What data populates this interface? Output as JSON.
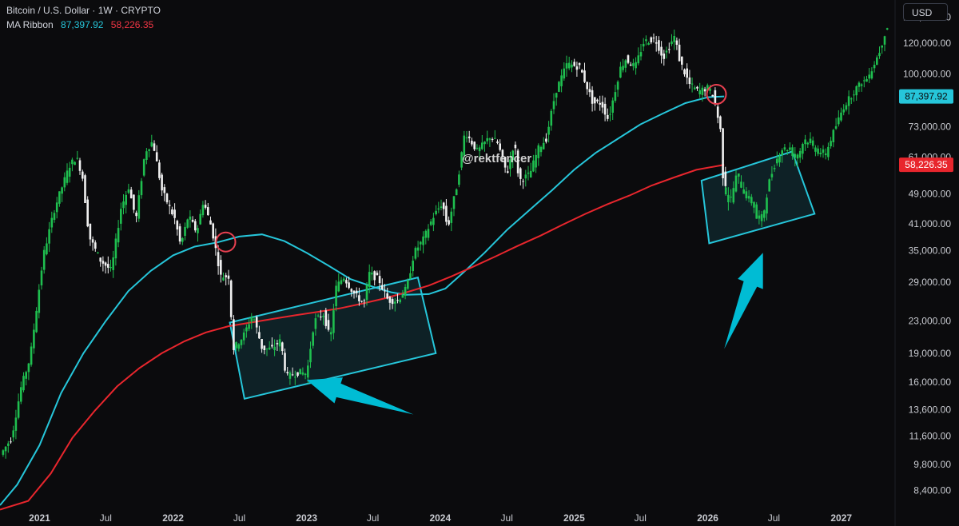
{
  "header": {
    "symbol": "Bitcoin / U.S. Dollar · 1W · CRYPTO",
    "indicator_name": "MA Ribbon",
    "ma1_value": "87,397.92",
    "ma2_value": "58,226.35",
    "currency_button": "USD"
  },
  "watermark": "@rektfencer",
  "colors": {
    "background": "#0b0b0d",
    "up": "#1fbf4f",
    "down": "#f0f0f0",
    "ma_fast": "#26c6da",
    "ma_slow": "#e8262d",
    "box_stroke": "#26c6da",
    "arrow": "#00bcd4",
    "circle": "#e84050"
  },
  "chart_data": {
    "type": "line",
    "title": "Bitcoin / U.S. Dollar · 1W · CRYPTO",
    "y_scale": "log",
    "ylim": [
      7700,
      155000
    ],
    "xlim": [
      "2020-09-15",
      "2027-05-28"
    ],
    "x_ticks": [
      {
        "date": "2021-01-01",
        "label": "2021"
      },
      {
        "date": "2021-07-01",
        "label": "Jul"
      },
      {
        "date": "2022-01-01",
        "label": "2022"
      },
      {
        "date": "2022-07-01",
        "label": "Jul"
      },
      {
        "date": "2023-01-01",
        "label": "2023"
      },
      {
        "date": "2023-07-01",
        "label": "Jul"
      },
      {
        "date": "2024-01-01",
        "label": "2024"
      },
      {
        "date": "2024-07-01",
        "label": "Jul"
      },
      {
        "date": "2025-01-01",
        "label": "2025"
      },
      {
        "date": "2025-07-01",
        "label": "Jul"
      },
      {
        "date": "2026-01-01",
        "label": "2026"
      },
      {
        "date": "2026-07-01",
        "label": "Jul"
      },
      {
        "date": "2027-01-01",
        "label": "2027"
      }
    ],
    "y_ticks": [
      {
        "value": 140000,
        "label": "140,000.00"
      },
      {
        "value": 120000,
        "label": "120,000.00"
      },
      {
        "value": 100000,
        "label": "100,000.00"
      },
      {
        "value": 73000,
        "label": "73,000.00"
      },
      {
        "value": 61000,
        "label": "61,000.00"
      },
      {
        "value": 49000,
        "label": "49,000.00"
      },
      {
        "value": 41000,
        "label": "41,000.00"
      },
      {
        "value": 35000,
        "label": "35,000.00"
      },
      {
        "value": 29000,
        "label": "29,000.00"
      },
      {
        "value": 23000,
        "label": "23,000.00"
      },
      {
        "value": 19000,
        "label": "19,000.00"
      },
      {
        "value": 16000,
        "label": "16,000.00"
      },
      {
        "value": 13600,
        "label": "13,600.00"
      },
      {
        "value": 11600,
        "label": "11,600.00"
      },
      {
        "value": 9800,
        "label": "9,800.00"
      },
      {
        "value": 8400,
        "label": "8,400.00"
      }
    ],
    "price_labels": [
      {
        "value": 87397.92,
        "label": "87,397.92",
        "color": "#26c6da"
      },
      {
        "value": 58226.35,
        "label": "58,226.35",
        "color": "#e8262d"
      }
    ],
    "series": [
      {
        "kind": "price",
        "points": [
          [
            "2020-09-20",
            10400
          ],
          [
            "2020-10-20",
            11500
          ],
          [
            "2020-11-15",
            15500
          ],
          [
            "2020-12-10",
            18500
          ],
          [
            "2020-12-30",
            26000
          ],
          [
            "2021-01-15",
            34000
          ],
          [
            "2021-02-15",
            45000
          ],
          [
            "2021-03-10",
            52000
          ],
          [
            "2021-03-28",
            58000
          ],
          [
            "2021-04-15",
            61000
          ],
          [
            "2021-05-01",
            55000
          ],
          [
            "2021-05-20",
            38000
          ],
          [
            "2021-06-20",
            33000
          ],
          [
            "2021-07-20",
            31000
          ],
          [
            "2021-08-15",
            45000
          ],
          [
            "2021-09-05",
            51000
          ],
          [
            "2021-09-25",
            42000
          ],
          [
            "2021-10-20",
            63000
          ],
          [
            "2021-11-10",
            67000
          ],
          [
            "2021-12-05",
            50000
          ],
          [
            "2022-01-10",
            42000
          ],
          [
            "2022-01-25",
            36000
          ],
          [
            "2022-02-15",
            43000
          ],
          [
            "2022-03-10",
            39000
          ],
          [
            "2022-03-28",
            47000
          ],
          [
            "2022-04-20",
            40000
          ],
          [
            "2022-05-15",
            30000
          ],
          [
            "2022-06-05",
            30000
          ],
          [
            "2022-06-18",
            19500
          ],
          [
            "2022-07-15",
            21000
          ],
          [
            "2022-08-10",
            24000
          ],
          [
            "2022-09-05",
            19500
          ],
          [
            "2022-10-01",
            19500
          ],
          [
            "2022-10-25",
            20500
          ],
          [
            "2022-11-10",
            16500
          ],
          [
            "2022-12-15",
            17000
          ],
          [
            "2023-01-05",
            16800
          ],
          [
            "2023-01-25",
            23000
          ],
          [
            "2023-02-20",
            24000
          ],
          [
            "2023-03-10",
            20500
          ],
          [
            "2023-03-25",
            28000
          ],
          [
            "2023-04-15",
            30000
          ],
          [
            "2023-05-15",
            27000
          ],
          [
            "2023-06-10",
            25500
          ],
          [
            "2023-06-25",
            30500
          ],
          [
            "2023-07-20",
            29500
          ],
          [
            "2023-08-15",
            26000
          ],
          [
            "2023-09-10",
            26000
          ],
          [
            "2023-10-05",
            28000
          ],
          [
            "2023-10-25",
            34500
          ],
          [
            "2023-11-20",
            37500
          ],
          [
            "2023-12-15",
            42500
          ],
          [
            "2024-01-10",
            46500
          ],
          [
            "2024-01-25",
            40000
          ],
          [
            "2024-02-20",
            52000
          ],
          [
            "2024-03-12",
            71000
          ],
          [
            "2024-04-15",
            63000
          ],
          [
            "2024-05-20",
            69000
          ],
          [
            "2024-06-10",
            66000
          ],
          [
            "2024-07-05",
            55000
          ],
          [
            "2024-07-25",
            67000
          ],
          [
            "2024-08-07",
            53000
          ],
          [
            "2024-09-05",
            55000
          ],
          [
            "2024-09-28",
            64000
          ],
          [
            "2024-10-20",
            68000
          ],
          [
            "2024-11-15",
            90000
          ],
          [
            "2024-12-16",
            106000
          ],
          [
            "2025-01-20",
            104000
          ],
          [
            "2025-02-25",
            84000
          ],
          [
            "2025-03-20",
            84000
          ],
          [
            "2025-04-08",
            76000
          ],
          [
            "2025-05-10",
            103000
          ],
          [
            "2025-05-25",
            109000
          ],
          [
            "2025-06-20",
            104000
          ],
          [
            "2025-07-14",
            121000
          ],
          [
            "2025-08-14",
            123000
          ],
          [
            "2025-09-05",
            110000
          ],
          [
            "2025-10-06",
            125000
          ],
          [
            "2025-10-20",
            108000
          ],
          [
            "2025-11-15",
            94000
          ],
          [
            "2025-12-10",
            90000
          ],
          [
            "2026-01-05",
            92000
          ],
          [
            "2026-01-20",
            88000
          ],
          [
            "2026-02-10",
            70000
          ],
          [
            "2026-02-16",
            52000
          ]
        ]
      },
      {
        "kind": "projection",
        "points": [
          [
            "2026-02-16",
            52000
          ],
          [
            "2026-03-05",
            46000
          ],
          [
            "2026-03-25",
            55000
          ],
          [
            "2026-04-15",
            49000
          ],
          [
            "2026-05-10",
            46000
          ],
          [
            "2026-05-20",
            41500
          ],
          [
            "2026-06-05",
            43000
          ],
          [
            "2026-06-20",
            52000
          ],
          [
            "2026-07-05",
            58000
          ],
          [
            "2026-07-25",
            64000
          ],
          [
            "2026-08-15",
            64000
          ],
          [
            "2026-09-05",
            60000
          ],
          [
            "2026-09-25",
            68000
          ],
          [
            "2026-10-25",
            64000
          ],
          [
            "2026-11-20",
            61000
          ],
          [
            "2026-12-10",
            69000
          ],
          [
            "2027-01-10",
            82000
          ],
          [
            "2027-02-15",
            92000
          ],
          [
            "2027-03-20",
            98000
          ],
          [
            "2027-04-20",
            115000
          ],
          [
            "2027-05-08",
            132000
          ]
        ]
      },
      {
        "name": "MA Ribbon",
        "kind": "ma_fast",
        "points": [
          [
            "2020-09-15",
            7700
          ],
          [
            "2020-11-01",
            8700
          ],
          [
            "2021-01-01",
            11000
          ],
          [
            "2021-03-01",
            15000
          ],
          [
            "2021-05-01",
            19000
          ],
          [
            "2021-07-01",
            23000
          ],
          [
            "2021-09-01",
            27500
          ],
          [
            "2021-11-01",
            31000
          ],
          [
            "2022-01-01",
            34000
          ],
          [
            "2022-03-01",
            35800
          ],
          [
            "2022-05-01",
            36700
          ],
          [
            "2022-07-01",
            38000
          ],
          [
            "2022-09-01",
            38500
          ],
          [
            "2022-11-01",
            37000
          ],
          [
            "2023-01-01",
            34500
          ],
          [
            "2023-03-01",
            32000
          ],
          [
            "2023-05-01",
            29500
          ],
          [
            "2023-07-01",
            28200
          ],
          [
            "2023-08-20",
            27300
          ],
          [
            "2023-10-01",
            26900
          ],
          [
            "2023-12-01",
            27000
          ],
          [
            "2024-01-15",
            27900
          ],
          [
            "2024-03-01",
            30500
          ],
          [
            "2024-05-01",
            34500
          ],
          [
            "2024-07-01",
            39500
          ],
          [
            "2024-09-01",
            44500
          ],
          [
            "2024-11-01",
            50000
          ],
          [
            "2025-01-01",
            56500
          ],
          [
            "2025-03-01",
            62500
          ],
          [
            "2025-05-01",
            68000
          ],
          [
            "2025-07-01",
            74000
          ],
          [
            "2025-09-01",
            79000
          ],
          [
            "2025-11-01",
            84000
          ],
          [
            "2026-01-01",
            87000
          ],
          [
            "2026-02-15",
            87400
          ]
        ]
      },
      {
        "name": "MA Ribbon",
        "kind": "ma_slow",
        "points": [
          [
            "2020-09-15",
            7500
          ],
          [
            "2020-12-01",
            7900
          ],
          [
            "2021-02-01",
            9300
          ],
          [
            "2021-04-01",
            11500
          ],
          [
            "2021-06-01",
            13500
          ],
          [
            "2021-08-01",
            15600
          ],
          [
            "2021-10-01",
            17400
          ],
          [
            "2021-12-01",
            19000
          ],
          [
            "2022-02-01",
            20400
          ],
          [
            "2022-04-01",
            21500
          ],
          [
            "2022-06-01",
            22300
          ],
          [
            "2022-08-01",
            22800
          ],
          [
            "2022-10-01",
            23300
          ],
          [
            "2022-12-01",
            23800
          ],
          [
            "2023-02-01",
            24300
          ],
          [
            "2023-04-01",
            24800
          ],
          [
            "2023-06-01",
            25500
          ],
          [
            "2023-08-01",
            26300
          ],
          [
            "2023-10-01",
            27300
          ],
          [
            "2023-12-01",
            28400
          ],
          [
            "2024-02-01",
            30000
          ],
          [
            "2024-04-01",
            31800
          ],
          [
            "2024-06-01",
            33800
          ],
          [
            "2024-08-01",
            36000
          ],
          [
            "2024-10-01",
            38200
          ],
          [
            "2024-12-01",
            40800
          ],
          [
            "2025-02-01",
            43500
          ],
          [
            "2025-04-01",
            46000
          ],
          [
            "2025-06-01",
            48500
          ],
          [
            "2025-08-01",
            51500
          ],
          [
            "2025-10-01",
            54000
          ],
          [
            "2025-12-01",
            56500
          ],
          [
            "2026-02-15",
            58226
          ]
        ]
      }
    ],
    "annotations": [
      {
        "type": "box",
        "corners": [
          [
            "2022-06-05",
            22800
          ],
          [
            "2023-11-01",
            29800
          ],
          [
            "2023-12-20",
            19000
          ],
          [
            "2022-07-15",
            14500
          ]
        ]
      },
      {
        "type": "box",
        "corners": [
          [
            "2025-12-15",
            53000
          ],
          [
            "2026-08-20",
            63000
          ],
          [
            "2026-10-20",
            43500
          ],
          [
            "2026-01-05",
            36500
          ]
        ]
      },
      {
        "type": "circle",
        "date": "2022-05-25",
        "value": 36800
      },
      {
        "type": "circle",
        "date": "2026-01-25",
        "value": 88500
      },
      {
        "type": "arrow",
        "from": [
          "2023-10-20",
          13200
        ],
        "to": [
          "2023-01-01",
          16200
        ]
      },
      {
        "type": "arrow",
        "from": [
          "2026-02-15",
          19500
        ],
        "to": [
          "2026-06-01",
          34500
        ]
      }
    ]
  }
}
